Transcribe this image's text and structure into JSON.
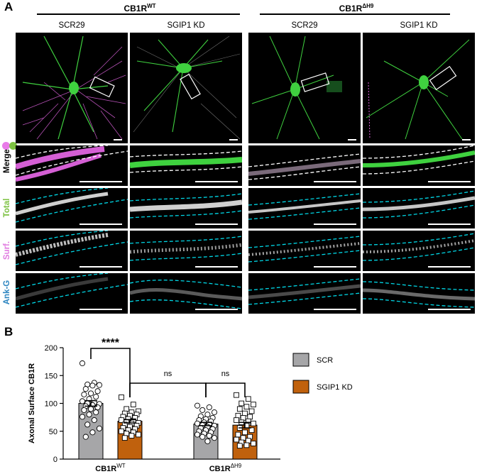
{
  "panel_a": {
    "letter": "A",
    "groups": [
      {
        "title": "CB1R",
        "superscript": "WT"
      },
      {
        "title": "CB1R",
        "superscript": "ΔH9"
      }
    ],
    "columns": [
      "SCR29",
      "SGIP1 KD",
      "SCR29",
      "SGIP1 KD"
    ],
    "rows": [
      {
        "label": "Merge",
        "color": "#000000"
      },
      {
        "label": "Total",
        "color": "#7dc242"
      },
      {
        "label": "Surf.",
        "color": "#e07be0"
      },
      {
        "label": "Ank-G",
        "color": "#2e86c1"
      }
    ],
    "merge_dot_colors": [
      "#e87be8",
      "#7dc242"
    ],
    "colors": {
      "neuron": "#3fd13f",
      "surface": "#d45fd4",
      "nuclei": "#1b2a8c",
      "outline_overlay": "#00d7e6",
      "outline_merge": "#ffffff",
      "scalebar": "#ffffff"
    }
  },
  "panel_b": {
    "letter": "B",
    "chart_data": {
      "type": "bar",
      "ylabel": "Axonal Surface CB1R",
      "ylim": [
        0,
        200
      ],
      "yticks": [
        0,
        50,
        100,
        150,
        200
      ],
      "groups": [
        {
          "label": "CB1R",
          "superscript": "WT"
        },
        {
          "label": "CB1R",
          "superscript": "ΔH9"
        }
      ],
      "series": [
        {
          "name": "SCR",
          "color": "#a6a6a8",
          "marker": "circle",
          "means": [
            100,
            63
          ],
          "sem": [
            5,
            3
          ],
          "points": [
            [
              172,
              137,
              134,
              133,
              132,
              126,
              122,
              118,
              116,
              112,
              108,
              104,
              101,
              100,
              99,
              97,
              95,
              93,
              90,
              88,
              84,
              80,
              76,
              70,
              62,
              55,
              48,
              40
            ],
            [
              96,
              93,
              88,
              84,
              80,
              77,
              74,
              72,
              70,
              68,
              66,
              64,
              62,
              61,
              60,
              58,
              56,
              54,
              52,
              50,
              48,
              46,
              44,
              42,
              40,
              38,
              32
            ]
          ]
        },
        {
          "name": "SGIP1 KD",
          "color": "#c0610d",
          "marker": "square",
          "means": [
            68,
            61
          ],
          "sem": [
            3,
            5
          ],
          "points": [
            [
              111,
              98,
              90,
              86,
              84,
              82,
              80,
              78,
              76,
              74,
              72,
              70,
              68,
              66,
              65,
              64,
              62,
              60,
              58,
              56,
              54,
              52,
              50,
              48,
              46,
              44,
              42,
              38
            ],
            [
              115,
              108,
              100,
              98,
              94,
              90,
              86,
              82,
              78,
              76,
              74,
              70,
              68,
              66,
              64,
              60,
              56,
              52,
              48,
              44,
              40,
              38,
              35,
              33,
              30,
              28,
              25,
              24
            ]
          ]
        }
      ],
      "annotations": [
        {
          "text": "****",
          "between": "CB1R WT SCR vs CB1R WT SGIP1 KD"
        },
        {
          "text": "ns",
          "between": "CB1R WT SGIP1 KD vs CB1R ΔH9 SCR"
        },
        {
          "text": "ns",
          "between": "CB1R ΔH9 SCR vs CB1R ΔH9 SGIP1 KD"
        }
      ],
      "legend": {
        "placement": "right",
        "entries": [
          "SCR",
          "SGIP1 KD"
        ]
      }
    }
  }
}
